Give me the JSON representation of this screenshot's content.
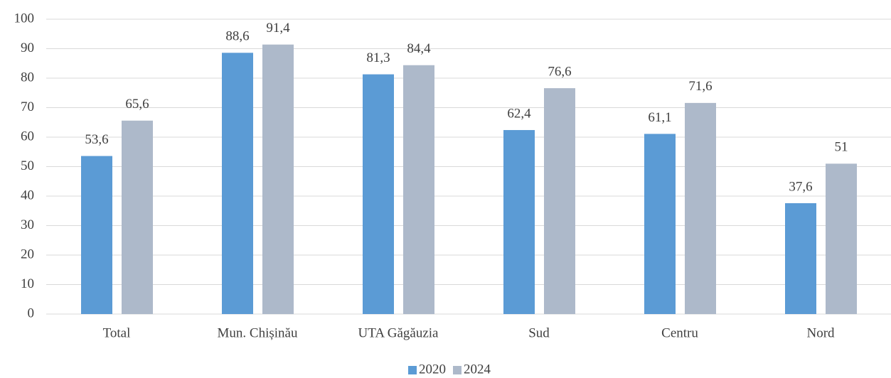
{
  "chart_data": {
    "type": "bar",
    "categories": [
      "Total",
      "Mun. Chișinău",
      "UTA Găgăuzia",
      "Sud",
      "Centru",
      "Nord"
    ],
    "series": [
      {
        "name": "2020",
        "color": "#5b9bd5",
        "values": [
          53.6,
          88.6,
          81.3,
          62.4,
          61.1,
          37.6
        ],
        "value_labels": [
          "53,6",
          "88,6",
          "81,3",
          "62,4",
          "61,1",
          "37,6"
        ]
      },
      {
        "name": "2024",
        "color": "#adb9ca",
        "values": [
          65.6,
          91.4,
          84.4,
          76.6,
          71.6,
          51
        ],
        "value_labels": [
          "65,6",
          "91,4",
          "84,4",
          "76,6",
          "71,6",
          "51"
        ]
      }
    ],
    "ylim": [
      0,
      100
    ],
    "yticks": [
      0,
      10,
      20,
      30,
      40,
      50,
      60,
      70,
      80,
      90,
      100
    ],
    "grid": true,
    "legend": "bottom"
  }
}
